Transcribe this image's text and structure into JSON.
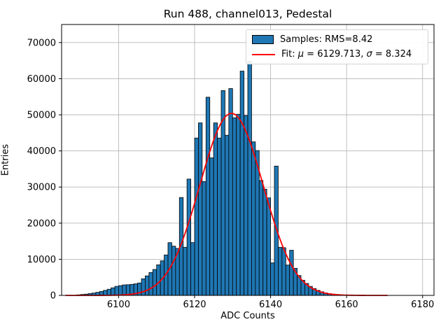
{
  "figure": {
    "title": "Run 488, channel013, Pedestal",
    "xlabel": "ADC Counts",
    "ylabel": "Entries"
  },
  "legend": {
    "samples_label": "Samples: RMS=8.42",
    "fit_prefix": "Fit: ",
    "fit_mu_symbol": "μ",
    "fit_mid": " = 6129.713, ",
    "fit_sigma_symbol": "σ",
    "fit_suffix": " = 8.324"
  },
  "chart_data": {
    "type": "bar",
    "title": "Run 488, channel013, Pedestal",
    "xlabel": "ADC Counts",
    "ylabel": "Entries",
    "xlim": [
      6085,
      6183
    ],
    "ylim": [
      0,
      75000
    ],
    "xticks": [
      6100,
      6120,
      6140,
      6160,
      6180
    ],
    "yticks": [
      0,
      10000,
      20000,
      30000,
      40000,
      50000,
      60000,
      70000
    ],
    "grid": true,
    "legend_position": "upper right",
    "bar_color": "#1f77b4",
    "bar_edge_color": "#000000",
    "fit_color": "#ff0000",
    "grid_color": "#b8b8b8",
    "bins": {
      "start": 6089,
      "width": 1,
      "counts": [
        150,
        250,
        350,
        500,
        650,
        850,
        1100,
        1400,
        1700,
        2100,
        2500,
        2700,
        2900,
        2950,
        3050,
        3200,
        3440,
        4600,
        5400,
        6340,
        7180,
        8470,
        9570,
        11200,
        14600,
        13630,
        13000,
        27100,
        13320,
        32200,
        14610,
        43560,
        47760,
        31500,
        54870,
        38070,
        47760,
        43560,
        56700,
        44340,
        57260,
        49180,
        50150,
        62100,
        49800,
        64830,
        42500,
        40100,
        31800,
        29400,
        27000,
        9000,
        35800,
        13320,
        13200,
        8400,
        12500,
        7500,
        5500,
        4200,
        3300,
        2500,
        1900,
        1400,
        1000,
        700,
        500,
        350,
        250
      ]
    },
    "fit": {
      "mu": 6129.713,
      "sigma": 8.324,
      "amplitude": 50400,
      "x_range": [
        6086,
        6171
      ]
    }
  }
}
